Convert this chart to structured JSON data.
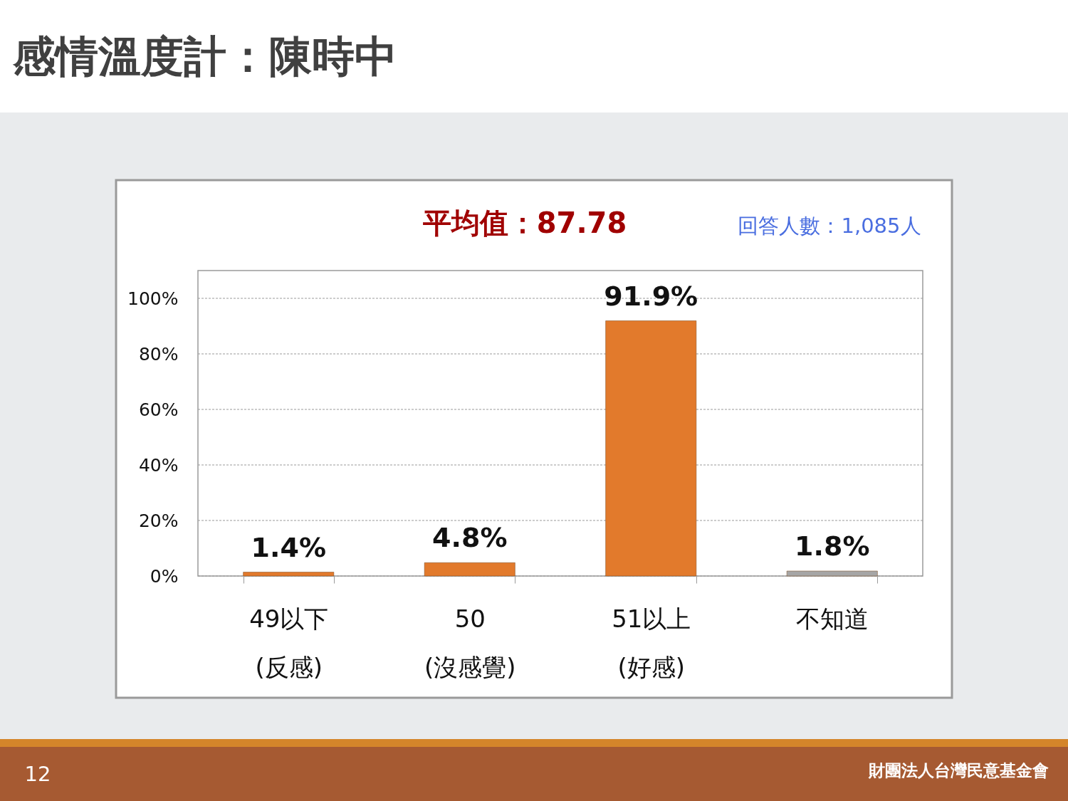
{
  "chart_data": {
    "type": "bar",
    "title": "感情溫度計：陳時中",
    "subtitle": "平均值：87.78",
    "annotations": [
      "回答人數：1,085人",
      "12",
      "財團法人台灣民意基金會"
    ],
    "categories": [
      "49以下\n(反感)",
      "50\n(沒感覺)",
      "51以上\n(好感)",
      "不知道"
    ],
    "values": [
      1.4,
      4.8,
      91.9,
      1.8
    ],
    "colors": [
      "#e27a2c",
      "#e27a2c",
      "#e27a2c",
      "#a6a6a6"
    ],
    "value_labels": [
      "1.4%",
      "4.8%",
      "91.9%",
      "1.8%"
    ],
    "ylim": [
      0,
      110
    ],
    "yticks": [
      {
        "value": 0,
        "label": "0%"
      },
      {
        "value": 20,
        "label": "20%"
      },
      {
        "value": 40,
        "label": "40%"
      },
      {
        "value": 60,
        "label": "60%"
      },
      {
        "value": 80,
        "label": "80%"
      },
      {
        "value": 100,
        "label": "100%"
      }
    ],
    "grid": "y"
  }
}
